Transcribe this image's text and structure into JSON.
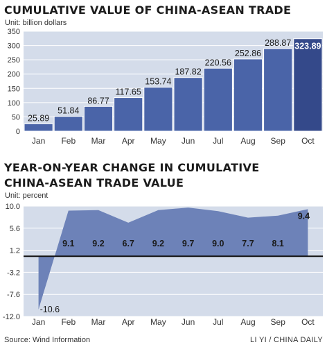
{
  "title1": "CUMULATIVE VALUE OF CHINA-ASEAN TRADE",
  "unit1": "Unit: billion dollars",
  "title2_line1": "YEAR-ON-YEAR CHANGE IN CUMULATIVE",
  "title2_line2": "CHINA-ASEAN TRADE VALUE",
  "unit2": "Unit: percent",
  "source": "Source: Wind Information",
  "credit": "LI YI / CHINA DAILY",
  "colors": {
    "bar": "#4a64a8",
    "bar_last": "#34498a",
    "bar_border": "#ffffff",
    "area": "#6d82b8",
    "plot_bg": "#d4dcea",
    "zero_line": "#111111"
  },
  "chart_data": [
    {
      "type": "bar",
      "title": "CUMULATIVE VALUE OF CHINA-ASEAN TRADE",
      "ylabel": "Unit: billion dollars",
      "categories": [
        "Jan",
        "Feb",
        "Mar",
        "Apr",
        "May",
        "Jun",
        "Jul",
        "Aug",
        "Sep",
        "Oct"
      ],
      "values": [
        25.89,
        51.84,
        86.77,
        117.65,
        153.74,
        187.82,
        220.56,
        252.86,
        288.87,
        323.89
      ],
      "value_labels": [
        "25.89",
        "51.84",
        "86.77",
        "117.65",
        "153.74",
        "187.82",
        "220.56",
        "252.86",
        "288.87",
        "323.89"
      ],
      "ylim": [
        0,
        350
      ],
      "yticks": [
        "0",
        "50",
        "100",
        "150",
        "200",
        "250",
        "300",
        "350"
      ],
      "grid": true
    },
    {
      "type": "area",
      "title": "YEAR-ON-YEAR CHANGE IN CUMULATIVE CHINA-ASEAN TRADE VALUE",
      "ylabel": "Unit: percent",
      "categories": [
        "Jan",
        "Feb",
        "Mar",
        "Apr",
        "May",
        "Jun",
        "Jul",
        "Aug",
        "Sep",
        "Oct"
      ],
      "values": [
        -10.6,
        9.1,
        9.2,
        6.7,
        9.2,
        9.7,
        9.0,
        7.7,
        8.1,
        9.4
      ],
      "value_labels": [
        "-10.6",
        "9.1",
        "9.2",
        "6.7",
        "9.2",
        "9.7",
        "9.0",
        "7.7",
        "8.1",
        "9.4"
      ],
      "ylim": [
        -12.0,
        10.0
      ],
      "yticks": [
        "10.0",
        "5.6",
        "1.2",
        "-3.2",
        "-7.6",
        "-12.0"
      ],
      "grid": true
    }
  ]
}
